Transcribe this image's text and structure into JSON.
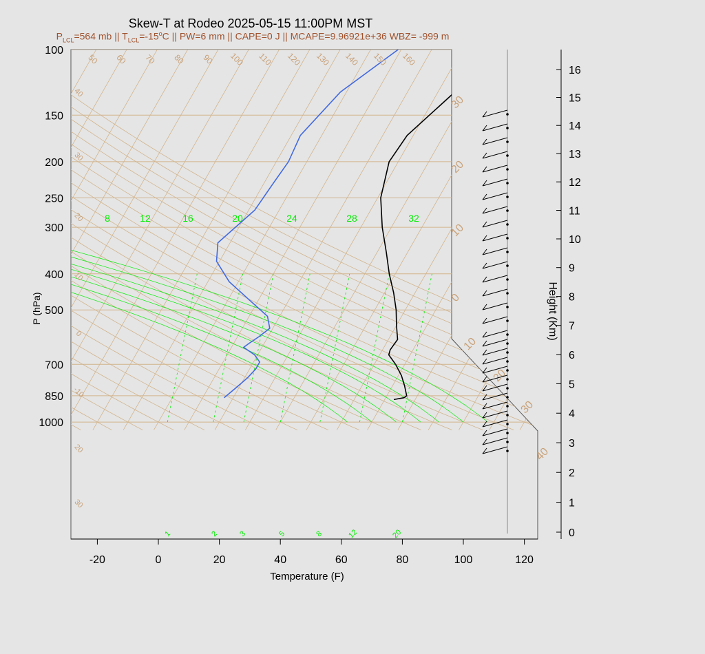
{
  "chart_data": {
    "type": "line",
    "title": "Skew-T at Rodeo 2025-05-15 11:00PM MST",
    "subtitle": {
      "p_lcl": "=564 mb || T",
      "t_lcl": "=-15",
      "rest": "C || PW=6 mm || CAPE=0 J || MCAPE=9.96921e+36 WBZ= -999 m"
    },
    "xlabel": "Temperature (F)",
    "ylabel": "P (hPa)",
    "y2label": "Height (Km)",
    "x_ticks": [
      -20,
      0,
      20,
      40,
      60,
      80,
      100,
      120
    ],
    "p_ticks": [
      100,
      150,
      200,
      250,
      300,
      400,
      500,
      700,
      850,
      1000
    ],
    "height_ticks": [
      0,
      1,
      2,
      3,
      4,
      5,
      6,
      7,
      8,
      9,
      10,
      11,
      12,
      13,
      14,
      15,
      16
    ],
    "mixing_ratio_labels": [
      "8",
      "12",
      "16",
      "20",
      "24",
      "28",
      "32"
    ],
    "mixing_ratio_bottom_labels": [
      "1",
      "2",
      "3",
      "5",
      "8",
      "12",
      "20"
    ],
    "dry_adiabat_labels": [
      "50",
      "60",
      "70",
      "80",
      "90",
      "100",
      "110",
      "120",
      "130",
      "140",
      "150",
      "160"
    ],
    "isotherm_left_labels": [
      "40",
      "30",
      "20",
      "10",
      "0",
      "-10",
      "20",
      "30"
    ],
    "isotherm_right_labels": [
      "30",
      "20",
      "10",
      "0",
      "10",
      "20",
      "30",
      "40"
    ],
    "series": [
      {
        "name": "Temperature",
        "color": "#000000",
        "points": [
          [
            100,
            52
          ],
          [
            130,
            35.5
          ],
          [
            170,
            28
          ],
          [
            200,
            27
          ],
          [
            250,
            31
          ],
          [
            300,
            37
          ],
          [
            350,
            43
          ],
          [
            400,
            48
          ],
          [
            450,
            53
          ],
          [
            500,
            57
          ],
          [
            550,
            60
          ],
          [
            600,
            63
          ],
          [
            640,
            62.5
          ],
          [
            660,
            63
          ],
          [
            700,
            67
          ],
          [
            750,
            71
          ],
          [
            800,
            74
          ],
          [
            850,
            76.5
          ],
          [
            860,
            76
          ],
          [
            870,
            73
          ]
        ]
      },
      {
        "name": "Dewpoint",
        "color": "#4169e1",
        "points": [
          [
            100,
            9
          ],
          [
            130,
            -2
          ],
          [
            170,
            -7
          ],
          [
            200,
            -6
          ],
          [
            230,
            -7
          ],
          [
            270,
            -8
          ],
          [
            330,
            -14
          ],
          [
            370,
            -11
          ],
          [
            420,
            -3
          ],
          [
            470,
            7
          ],
          [
            520,
            16
          ],
          [
            560,
            19
          ],
          [
            590,
            17
          ],
          [
            615,
            15
          ],
          [
            630,
            14
          ],
          [
            660,
            19
          ],
          [
            690,
            22
          ],
          [
            720,
            22
          ],
          [
            760,
            21
          ],
          [
            810,
            19
          ],
          [
            860,
            17
          ]
        ]
      }
    ],
    "wind_barbs": 30,
    "colors": {
      "temperature": "#000000",
      "dewpoint": "#4169e1",
      "isotherms": "#d2b48c",
      "mixing_ratio": "#00ee00",
      "title": "#000000",
      "subtitle": "#a0522d"
    }
  }
}
